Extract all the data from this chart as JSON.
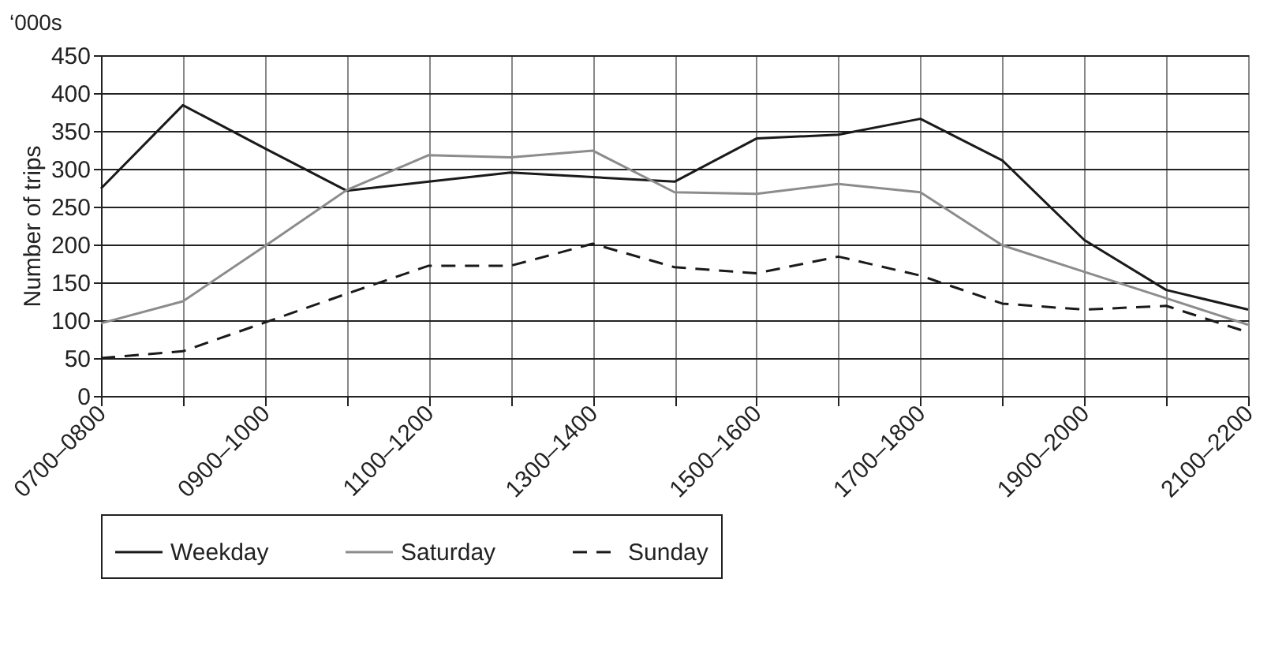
{
  "chart_data": {
    "type": "line",
    "ylabel": "Number of trips",
    "annotations": [
      "‘000s"
    ],
    "categories": [
      "0700–0800",
      null,
      "0900–1000",
      null,
      "1100–1200",
      null,
      "1300–1400",
      null,
      "1500–1600",
      null,
      "1700–1800",
      null,
      "1900–2000",
      null,
      "2100–2200"
    ],
    "series": [
      {
        "name": "Weekday",
        "color": "#1a1a1a",
        "line_style": "solid",
        "values": [
          274,
          384,
          327,
          271,
          283,
          295,
          289,
          283,
          340,
          345,
          366,
          311,
          206,
          140,
          114
        ]
      },
      {
        "name": "Saturday",
        "color": "#8c8c8c",
        "line_style": "solid",
        "values": [
          96,
          125,
          198,
          272,
          318,
          315,
          324,
          269,
          267,
          280,
          269,
          199,
          164,
          129,
          94
        ]
      },
      {
        "name": "Sunday",
        "color": "#1a1a1a",
        "line_style": "dashed",
        "values": [
          50,
          59,
          97,
          135,
          172,
          172,
          201,
          170,
          162,
          184,
          159,
          122,
          114,
          119,
          84
        ]
      }
    ],
    "ylim": [
      0,
      450
    ],
    "yticks": [
      0,
      50,
      100,
      150,
      200,
      250,
      300,
      350,
      400,
      450
    ],
    "grid": true,
    "legend": "bottom"
  }
}
